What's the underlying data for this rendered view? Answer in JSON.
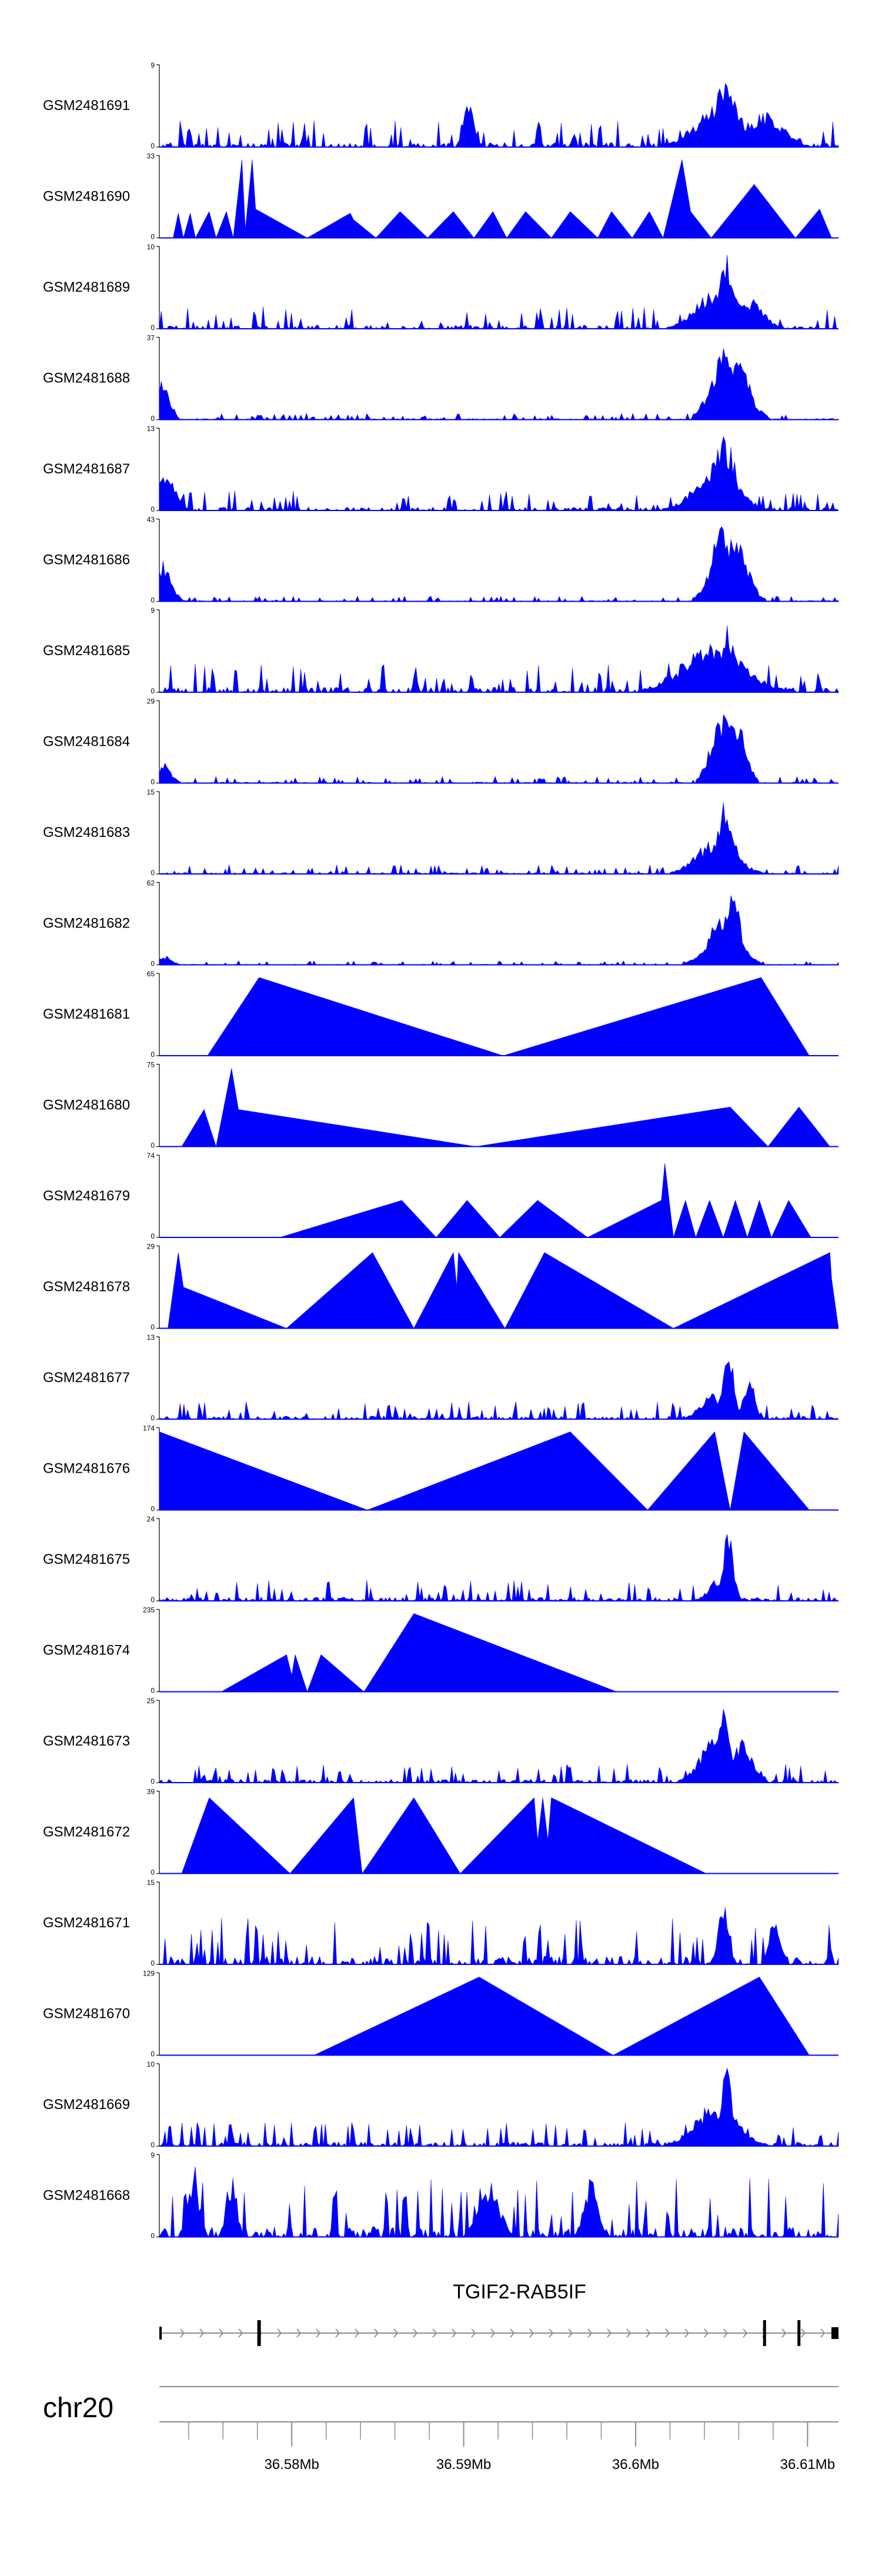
{
  "chart_data": {
    "type": "area",
    "chromosome": "chr20",
    "gene": {
      "name": "TGIF2-RAB5IF",
      "exons_mb": [
        36.5723,
        36.5781,
        36.6075,
        36.6095,
        36.6118
      ]
    },
    "x_range_mb": [
      36.5723,
      36.6118
    ],
    "x_ticks": [
      {
        "value": 36.58,
        "label": "36.58Mb"
      },
      {
        "value": 36.59,
        "label": "36.59Mb"
      },
      {
        "value": 36.6,
        "label": "36.6Mb"
      },
      {
        "value": 36.61,
        "label": "36.61Mb"
      }
    ],
    "minor_tick_step_mb": 0.002,
    "fill_color": "#0000ff",
    "tracks": [
      {
        "name": "GSM2481691",
        "ymax": 9,
        "ymax_label": "9",
        "y_zero_label": "0",
        "style": "noisy",
        "base": 0.2,
        "peaks": [
          [
            36.6053,
            0.95,
            0.0006
          ],
          [
            36.605,
            0.55,
            0.0014
          ],
          [
            36.6076,
            0.45,
            0.001
          ],
          [
            36.5903,
            0.55,
            0.0003
          ]
        ]
      },
      {
        "name": "GSM2481690",
        "ymax": 33,
        "ymax_label": "33",
        "y_zero_label": "0",
        "style": "polygon",
        "points": [
          [
            36.5723,
            0
          ],
          [
            36.5731,
            0
          ],
          [
            36.5734,
            0.3
          ],
          [
            36.5737,
            0
          ],
          [
            36.5741,
            0.3
          ],
          [
            36.5744,
            0
          ],
          [
            36.5752,
            0.32
          ],
          [
            36.5756,
            0
          ],
          [
            36.5762,
            0.32
          ],
          [
            36.5766,
            0
          ],
          [
            36.5771,
            0.95
          ],
          [
            36.5773,
            0.1
          ],
          [
            36.5777,
            0.95
          ],
          [
            36.5779,
            0.35
          ],
          [
            36.5809,
            0
          ],
          [
            36.5834,
            0.3
          ],
          [
            36.5836,
            0.22
          ],
          [
            36.5849,
            0
          ],
          [
            36.5863,
            0.32
          ],
          [
            36.5879,
            0
          ],
          [
            36.5894,
            0.32
          ],
          [
            36.5906,
            0
          ],
          [
            36.5917,
            0.32
          ],
          [
            36.5925,
            0
          ],
          [
            36.5936,
            0.32
          ],
          [
            36.5951,
            0
          ],
          [
            36.5962,
            0.32
          ],
          [
            36.5978,
            0
          ],
          [
            36.5986,
            0.32
          ],
          [
            36.5998,
            0
          ],
          [
            36.6008,
            0.32
          ],
          [
            36.6016,
            0
          ],
          [
            36.6027,
            0.95
          ],
          [
            36.6032,
            0.32
          ],
          [
            36.6044,
            0
          ],
          [
            36.6069,
            0.65
          ],
          [
            36.6093,
            0
          ],
          [
            36.6107,
            0.35
          ],
          [
            36.6114,
            0
          ],
          [
            36.6118,
            0
          ]
        ]
      },
      {
        "name": "GSM2481689",
        "ymax": 10,
        "ymax_label": "10",
        "y_zero_label": "0",
        "style": "noisy",
        "base": 0.17,
        "peaks": [
          [
            36.6053,
            0.95,
            0.0004
          ],
          [
            36.6048,
            0.55,
            0.0012
          ],
          [
            36.6066,
            0.4,
            0.0008
          ]
        ]
      },
      {
        "name": "GSM2481688",
        "ymax": 37,
        "ymax_label": "37",
        "y_zero_label": "0",
        "style": "noisy",
        "base": 0.05,
        "peaks": [
          [
            36.6052,
            0.95,
            0.0008
          ],
          [
            36.6058,
            0.75,
            0.0008
          ],
          [
            36.5725,
            0.55,
            0.0004
          ]
        ]
      },
      {
        "name": "GSM2481687",
        "ymax": 13,
        "ymax_label": "13",
        "y_zero_label": "0",
        "style": "noisy",
        "base": 0.15,
        "peaks": [
          [
            36.6052,
            0.95,
            0.0006
          ],
          [
            36.6047,
            0.6,
            0.0012
          ],
          [
            36.5726,
            0.5,
            0.0006
          ]
        ]
      },
      {
        "name": "GSM2481686",
        "ymax": 43,
        "ymax_label": "43",
        "y_zero_label": "0",
        "style": "noisy",
        "base": 0.04,
        "peaks": [
          [
            36.6051,
            0.95,
            0.0007
          ],
          [
            36.6058,
            0.78,
            0.0007
          ],
          [
            36.5725,
            0.5,
            0.0005
          ]
        ]
      },
      {
        "name": "GSM2481685",
        "ymax": 9,
        "ymax_label": "9",
        "y_zero_label": "0",
        "style": "noisy",
        "base": 0.22,
        "peaks": [
          [
            36.6053,
            0.95,
            0.0004
          ],
          [
            36.6045,
            0.6,
            0.0018
          ]
        ]
      },
      {
        "name": "GSM2481684",
        "ymax": 29,
        "ymax_label": "29",
        "y_zero_label": "0",
        "style": "noisy",
        "base": 0.05,
        "peaks": [
          [
            36.605,
            0.95,
            0.0006
          ],
          [
            36.6057,
            0.9,
            0.0006
          ],
          [
            36.5726,
            0.25,
            0.0004
          ]
        ]
      },
      {
        "name": "GSM2481683",
        "ymax": 15,
        "ymax_label": "15",
        "y_zero_label": "0",
        "style": "noisy",
        "base": 0.07,
        "peaks": [
          [
            36.6052,
            0.95,
            0.0005
          ],
          [
            36.6047,
            0.45,
            0.0011
          ]
        ]
      },
      {
        "name": "GSM2481682",
        "ymax": 62,
        "ymax_label": "62",
        "y_zero_label": "0",
        "style": "noisy",
        "base": 0.03,
        "peaks": [
          [
            36.6056,
            0.95,
            0.0005
          ],
          [
            36.6051,
            0.6,
            0.0009
          ],
          [
            36.5726,
            0.12,
            0.0004
          ]
        ]
      },
      {
        "name": "GSM2481681",
        "ymax": 65,
        "ymax_label": "65",
        "y_zero_label": "0",
        "style": "polygon",
        "points": [
          [
            36.5751,
            0
          ],
          [
            36.5781,
            0.95
          ],
          [
            36.5923,
            0
          ],
          [
            36.6073,
            0.95
          ],
          [
            36.6101,
            0
          ]
        ]
      },
      {
        "name": "GSM2481680",
        "ymax": 75,
        "ymax_label": "75",
        "y_zero_label": "0",
        "style": "polygon",
        "points": [
          [
            36.5736,
            0
          ],
          [
            36.5749,
            0.45
          ],
          [
            36.5756,
            0
          ],
          [
            36.5765,
            0.95
          ],
          [
            36.5769,
            0.45
          ],
          [
            36.5907,
            0
          ],
          [
            36.6055,
            0.48
          ],
          [
            36.6077,
            0
          ],
          [
            36.6095,
            0.48
          ],
          [
            36.6113,
            0
          ]
        ]
      },
      {
        "name": "GSM2481679",
        "ymax": 74,
        "ymax_label": "74",
        "y_zero_label": "0",
        "style": "polygon",
        "points": [
          [
            36.5793,
            0
          ],
          [
            36.5864,
            0.45
          ],
          [
            36.5884,
            0
          ],
          [
            36.5902,
            0.45
          ],
          [
            36.5921,
            0
          ],
          [
            36.5943,
            0.45
          ],
          [
            36.5972,
            0
          ],
          [
            36.6015,
            0.45
          ],
          [
            36.6017,
            0.9
          ],
          [
            36.6022,
            0
          ],
          [
            36.6029,
            0.45
          ],
          [
            36.6035,
            0
          ],
          [
            36.6043,
            0.45
          ],
          [
            36.6051,
            0
          ],
          [
            36.6058,
            0.45
          ],
          [
            36.6065,
            0
          ],
          [
            36.6072,
            0.45
          ],
          [
            36.6079,
            0
          ],
          [
            36.6089,
            0.45
          ],
          [
            36.6102,
            0
          ],
          [
            36.6107,
            0
          ]
        ]
      },
      {
        "name": "GSM2481678",
        "ymax": 29,
        "ymax_label": "29",
        "y_zero_label": "0",
        "style": "polygon",
        "points": [
          [
            36.5728,
            0
          ],
          [
            36.5734,
            0.92
          ],
          [
            36.5737,
            0.5
          ],
          [
            36.5797,
            0
          ],
          [
            36.5847,
            0.92
          ],
          [
            36.5871,
            0
          ],
          [
            36.5894,
            0.92
          ],
          [
            36.5896,
            0.5
          ],
          [
            36.5897,
            0.92
          ],
          [
            36.5924,
            0
          ],
          [
            36.5947,
            0.92
          ],
          [
            36.6022,
            0
          ],
          [
            36.6113,
            0.92
          ],
          [
            36.6114,
            0.6
          ],
          [
            36.6118,
            0
          ]
        ]
      },
      {
        "name": "GSM2481677",
        "ymax": 13,
        "ymax_label": "13",
        "y_zero_label": "0",
        "style": "noisy",
        "base": 0.14,
        "peaks": [
          [
            36.6054,
            0.95,
            0.0003
          ],
          [
            36.6066,
            0.55,
            0.0003
          ],
          [
            36.6045,
            0.35,
            0.0007
          ]
        ]
      },
      {
        "name": "GSM2481676",
        "ymax": 174,
        "ymax_label": "174",
        "y_zero_label": "0",
        "style": "polygon",
        "points": [
          [
            36.5723,
            0
          ],
          [
            36.5723,
            0.95
          ],
          [
            36.5844,
            0
          ],
          [
            36.5962,
            0.95
          ],
          [
            36.6007,
            0
          ],
          [
            36.6046,
            0.95
          ],
          [
            36.6055,
            0
          ],
          [
            36.6063,
            0.95
          ],
          [
            36.6101,
            0
          ]
        ]
      },
      {
        "name": "GSM2481675",
        "ymax": 24,
        "ymax_label": "24",
        "y_zero_label": "0",
        "style": "noisy",
        "base": 0.16,
        "peaks": [
          [
            36.6054,
            0.95,
            0.0003
          ],
          [
            36.6049,
            0.3,
            0.0006
          ]
        ]
      },
      {
        "name": "GSM2481674",
        "ymax": 235,
        "ymax_label": "235",
        "y_zero_label": "0",
        "style": "polygon",
        "points": [
          [
            36.5759,
            0
          ],
          [
            36.5797,
            0.45
          ],
          [
            36.58,
            0.2
          ],
          [
            36.5802,
            0.45
          ],
          [
            36.5809,
            0
          ],
          [
            36.5817,
            0.45
          ],
          [
            36.5842,
            0
          ],
          [
            36.5871,
            0.95
          ],
          [
            36.5989,
            0
          ]
        ]
      },
      {
        "name": "GSM2481673",
        "ymax": 25,
        "ymax_label": "25",
        "y_zero_label": "0",
        "style": "noisy",
        "base": 0.15,
        "peaks": [
          [
            36.6051,
            0.9,
            0.0004
          ],
          [
            36.6046,
            0.55,
            0.0009
          ],
          [
            36.6062,
            0.55,
            0.0006
          ]
        ]
      },
      {
        "name": "GSM2481672",
        "ymax": 39,
        "ymax_label": "39",
        "y_zero_label": "0",
        "style": "polygon",
        "points": [
          [
            36.5736,
            0
          ],
          [
            36.5752,
            0.92
          ],
          [
            36.5799,
            0
          ],
          [
            36.5836,
            0.92
          ],
          [
            36.5841,
            0
          ],
          [
            36.5871,
            0.92
          ],
          [
            36.5898,
            0
          ],
          [
            36.5941,
            0.92
          ],
          [
            36.5943,
            0.4
          ],
          [
            36.5946,
            0.92
          ],
          [
            36.5949,
            0.4
          ],
          [
            36.5951,
            0.92
          ],
          [
            36.6041,
            0
          ]
        ]
      },
      {
        "name": "GSM2481671",
        "ymax": 15,
        "ymax_label": "15",
        "y_zero_label": "0",
        "style": "noisy",
        "base": 0.35,
        "peaks": [
          [
            36.6051,
            0.8,
            0.0003
          ],
          [
            36.6081,
            0.7,
            0.0003
          ]
        ]
      },
      {
        "name": "GSM2481670",
        "ymax": 129,
        "ymax_label": "129",
        "y_zero_label": "0",
        "style": "polygon",
        "points": [
          [
            36.5813,
            0
          ],
          [
            36.5909,
            0.95
          ],
          [
            36.5987,
            0
          ],
          [
            36.6072,
            0.95
          ],
          [
            36.6101,
            0
          ]
        ]
      },
      {
        "name": "GSM2481669",
        "ymax": 10,
        "ymax_label": "10",
        "y_zero_label": "0",
        "style": "noisy",
        "base": 0.18,
        "peaks": [
          [
            36.6053,
            0.95,
            0.0004
          ],
          [
            36.6047,
            0.55,
            0.0012
          ]
        ]
      },
      {
        "name": "GSM2481668",
        "ymax": 9,
        "ymax_label": "9",
        "y_zero_label": "0",
        "style": "noisy",
        "base": 0.45,
        "peaks": [
          [
            36.5743,
            0.9,
            0.0003
          ],
          [
            36.5765,
            0.8,
            0.0003
          ],
          [
            36.5915,
            0.7,
            0.0006
          ],
          [
            36.5974,
            0.75,
            0.0004
          ]
        ]
      }
    ]
  }
}
